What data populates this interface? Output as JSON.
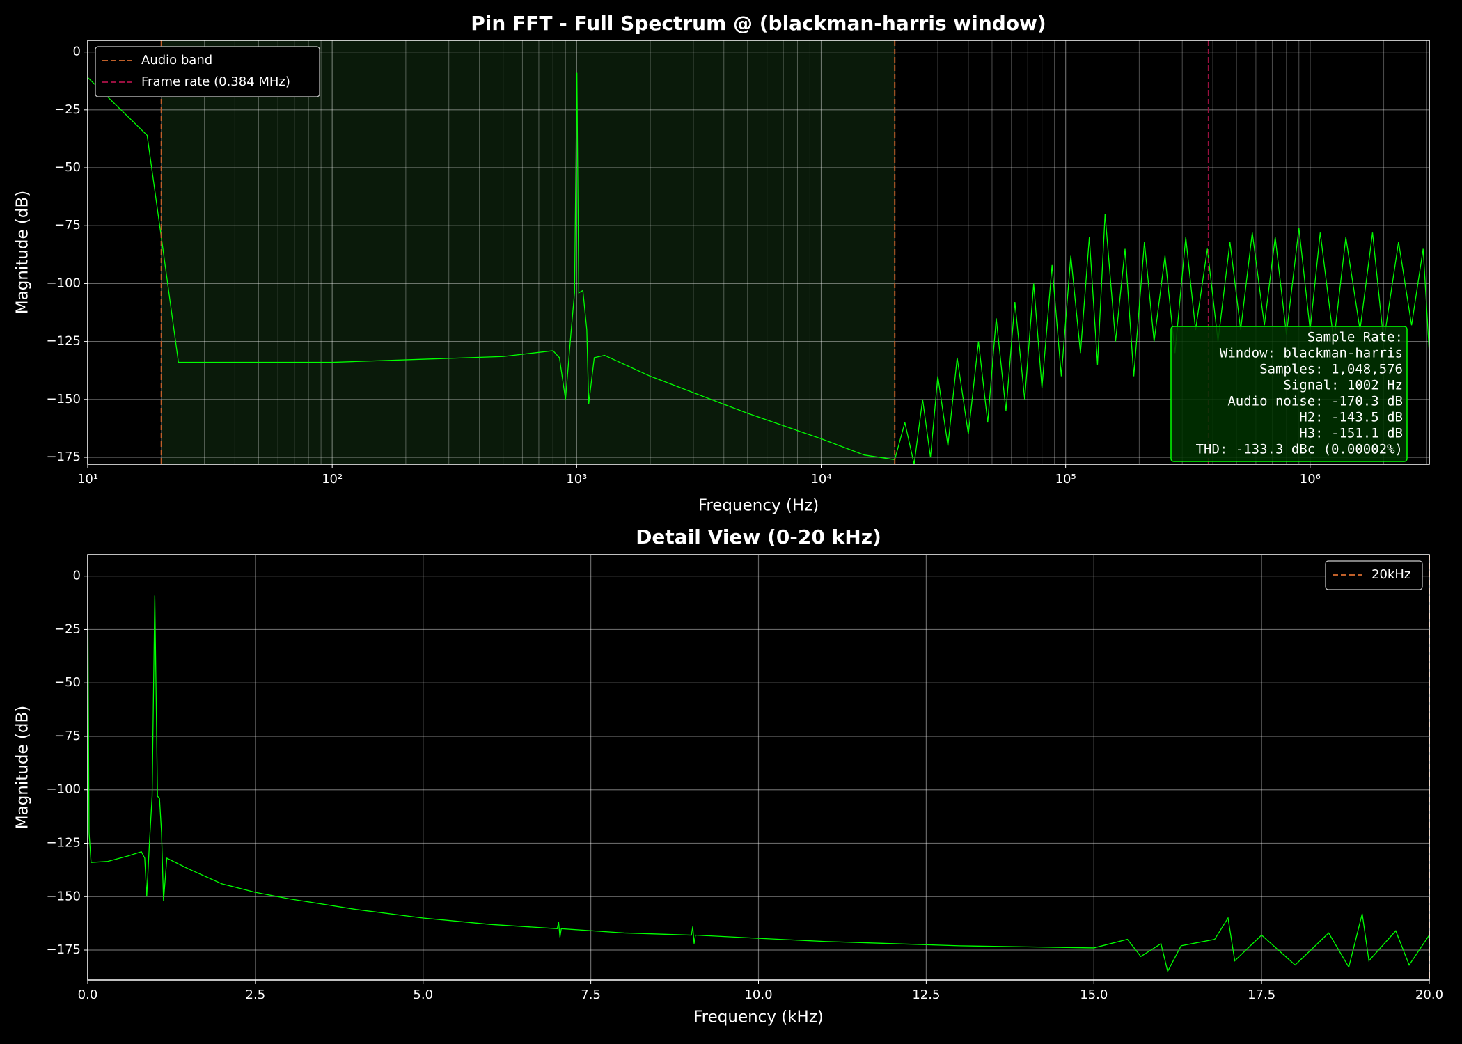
{
  "chart_data": [
    {
      "type": "line",
      "title": "Pin FFT - Full Spectrum @ (blackman-harris window)",
      "xlabel": "Frequency (Hz)",
      "ylabel": "Magnitude (dB)",
      "xscale": "log",
      "xlim": [
        10,
        3072000
      ],
      "ylim": [
        -178,
        5
      ],
      "grid": true,
      "minor_grid": true,
      "xticks": [
        {
          "value": 10,
          "label": "10¹"
        },
        {
          "value": 100,
          "label": "10²"
        },
        {
          "value": 1000,
          "label": "10³"
        },
        {
          "value": 10000,
          "label": "10⁴"
        },
        {
          "value": 100000,
          "label": "10⁵"
        },
        {
          "value": 1000000,
          "label": "10⁶"
        }
      ],
      "yticks": [
        0,
        {
          "value": -25,
          "label": "−25"
        },
        {
          "value": -50,
          "label": "−50"
        },
        {
          "value": -75,
          "label": "−75"
        },
        {
          "value": -100,
          "label": "−100"
        },
        {
          "value": -125,
          "label": "−125"
        },
        {
          "value": -150,
          "label": "−150"
        },
        {
          "value": -175,
          "label": "−175"
        }
      ],
      "shaded_span": [
        20,
        20000
      ],
      "shade_color": "#0a1a0a",
      "reference_lines": [
        {
          "name": "Audio band",
          "color": "#c0602a",
          "x": [
            20,
            20000
          ]
        },
        {
          "name": "Frame rate (0.384 MHz)",
          "color": "#9a1040",
          "x": [
            384000
          ]
        }
      ],
      "legend": "upper left",
      "series": [
        {
          "color": "#00ff00",
          "x": [
            10,
            17.5,
            20,
            23.5,
            100,
            500,
            800,
            850,
            900,
            950,
            980,
            1002,
            1020,
            1060,
            1100,
            1120,
            1180,
            1300,
            2000,
            5000,
            10000,
            15000,
            20000,
            22000,
            24000,
            26000,
            28000,
            30000,
            33000,
            36000,
            40000,
            44000,
            48000,
            52000,
            57000,
            62000,
            68000,
            74000,
            80000,
            88000,
            96000,
            105000,
            115000,
            125000,
            135000,
            145000,
            160000,
            175000,
            190000,
            210000,
            230000,
            255000,
            280000,
            310000,
            340000,
            380000,
            420000,
            470000,
            520000,
            580000,
            650000,
            720000,
            800000,
            900000,
            1000000,
            1100000,
            1250000,
            1400000,
            1600000,
            1800000,
            2000000,
            2300000,
            2600000,
            2900000,
            3072000
          ],
          "values": [
            -11,
            -36,
            -80,
            -134,
            -134,
            -131.5,
            -129,
            -132,
            -150,
            -120,
            -104,
            -9,
            -104,
            -103,
            -120,
            -152,
            -132,
            -131,
            -140,
            -156,
            -167,
            -174,
            -176,
            -160,
            -178,
            -150,
            -175,
            -140,
            -170,
            -132,
            -165,
            -125,
            -160,
            -115,
            -155,
            -108,
            -150,
            -100,
            -145,
            -92,
            -140,
            -88,
            -130,
            -80,
            -135,
            -70,
            -125,
            -85,
            -140,
            -82,
            -125,
            -88,
            -130,
            -80,
            -120,
            -85,
            -125,
            -82,
            -120,
            -78,
            -118,
            -80,
            -122,
            -76,
            -120,
            -78,
            -125,
            -80,
            -120,
            -78,
            -125,
            -82,
            -118,
            -85,
            -130
          ]
        }
      ],
      "annotation": {
        "corner": "lower right",
        "lines": [
          "Sample Rate:",
          "Window: blackman-harris",
          "Samples: 1,048,576",
          "Signal: 1002 Hz",
          "Audio noise: -170.3 dB",
          "H2: -143.5 dB",
          "H3: -151.1 dB",
          "THD: -133.3 dBc (0.00002%)"
        ]
      }
    },
    {
      "type": "line",
      "title": "Detail View (0-20 kHz)",
      "xlabel": "Frequency (kHz)",
      "ylabel": "Magnitude (dB)",
      "xscale": "linear",
      "xlim": [
        0,
        20
      ],
      "ylim": [
        -189,
        10
      ],
      "grid": true,
      "xticks": [
        {
          "value": 0,
          "label": "0.0"
        },
        2.5,
        {
          "value": 5,
          "label": "5.0"
        },
        7.5,
        {
          "value": 10,
          "label": "10.0"
        },
        12.5,
        {
          "value": 15,
          "label": "15.0"
        },
        17.5,
        {
          "value": 20,
          "label": "20.0"
        }
      ],
      "yticks": [
        0,
        {
          "value": -25,
          "label": "−25"
        },
        {
          "value": -50,
          "label": "−50"
        },
        {
          "value": -75,
          "label": "−75"
        },
        {
          "value": -100,
          "label": "−100"
        },
        {
          "value": -125,
          "label": "−125"
        },
        {
          "value": -150,
          "label": "−150"
        },
        {
          "value": -175,
          "label": "−175"
        }
      ],
      "reference_lines": [
        {
          "name": "20kHz",
          "color": "#c0602a",
          "x": [
            20
          ]
        }
      ],
      "legend": "upper right",
      "series": [
        {
          "color": "#00ff00",
          "x": [
            0,
            0.02,
            0.05,
            0.3,
            0.6,
            0.8,
            0.85,
            0.88,
            0.92,
            0.96,
            1.0,
            1.04,
            1.07,
            1.1,
            1.13,
            1.18,
            1.5,
            2.0,
            2.5,
            3,
            4,
            5,
            6,
            7,
            7.02,
            7.04,
            7.06,
            8,
            9,
            9.02,
            9.04,
            9.06,
            10,
            11,
            12,
            13,
            14,
            15,
            15.5,
            15.7,
            16,
            16.1,
            16.3,
            16.8,
            17,
            17.1,
            17.5,
            18,
            18.5,
            18.8,
            19,
            19.1,
            19.5,
            19.7,
            20
          ],
          "values": [
            -1,
            -120,
            -134,
            -133.5,
            -131,
            -129,
            -132,
            -150,
            -125,
            -103,
            -9,
            -103,
            -104,
            -120,
            -152,
            -132,
            -137,
            -144,
            -148,
            -151,
            -156,
            -160,
            -163,
            -165,
            -162,
            -169,
            -165,
            -167,
            -168,
            -164,
            -172,
            -168,
            -169.5,
            -171,
            -172,
            -173,
            -173.5,
            -174,
            -170,
            -178,
            -172,
            -185,
            -173,
            -170,
            -160,
            -180,
            -168,
            -182,
            -167,
            -183,
            -158,
            -180,
            -166,
            -182,
            -168
          ]
        }
      ]
    }
  ]
}
